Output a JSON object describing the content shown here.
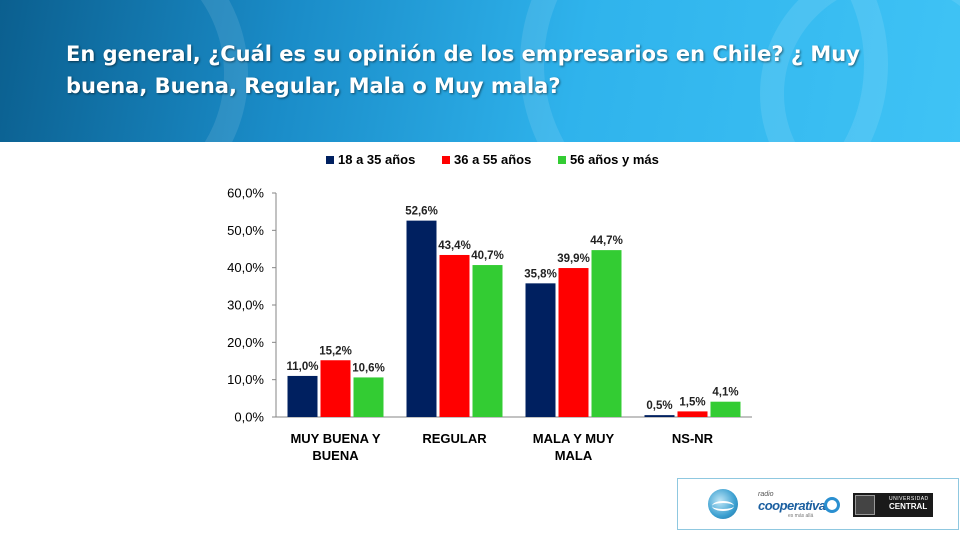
{
  "header": {
    "title": "En general, ¿Cuál es su opinión de los empresarios en Chile? ¿ Muy buena, Buena, Regular, Mala o Muy mala?"
  },
  "chart_data": {
    "type": "bar",
    "categories": [
      [
        "MUY BUENA Y",
        "BUENA"
      ],
      [
        "REGULAR"
      ],
      [
        "MALA Y MUY",
        "MALA"
      ],
      [
        "NS-NR"
      ]
    ],
    "series": [
      {
        "name": "18 a 35 años",
        "color": "#002060",
        "values": [
          11.0,
          52.6,
          35.8,
          0.5
        ],
        "labels": [
          "11,0%",
          "52,6%",
          "35,8%",
          "0,5%"
        ]
      },
      {
        "name": "36 a 55 años",
        "color": "#ff0000",
        "values": [
          15.2,
          43.4,
          39.9,
          1.5
        ],
        "labels": [
          "15,2%",
          "43,4%",
          "39,9%",
          "1,5%"
        ]
      },
      {
        "name": "56 años y más",
        "color": "#33cc33",
        "values": [
          10.6,
          40.7,
          44.7,
          4.1
        ],
        "labels": [
          "10,6%",
          "40,7%",
          "44,7%",
          "4,1%"
        ]
      }
    ],
    "ylim": [
      0,
      60
    ],
    "yticks": [
      "0,0%",
      "10,0%",
      "20,0%",
      "30,0%",
      "40,0%",
      "50,0%",
      "60,0%"
    ],
    "legend_position": "top",
    "grid": false
  },
  "logos": {
    "radio": {
      "small": "radio",
      "name": "cooperativa",
      "tagline": "es más allá"
    },
    "university": {
      "small": "UNIVERSIDAD",
      "name": "CENTRAL"
    }
  }
}
